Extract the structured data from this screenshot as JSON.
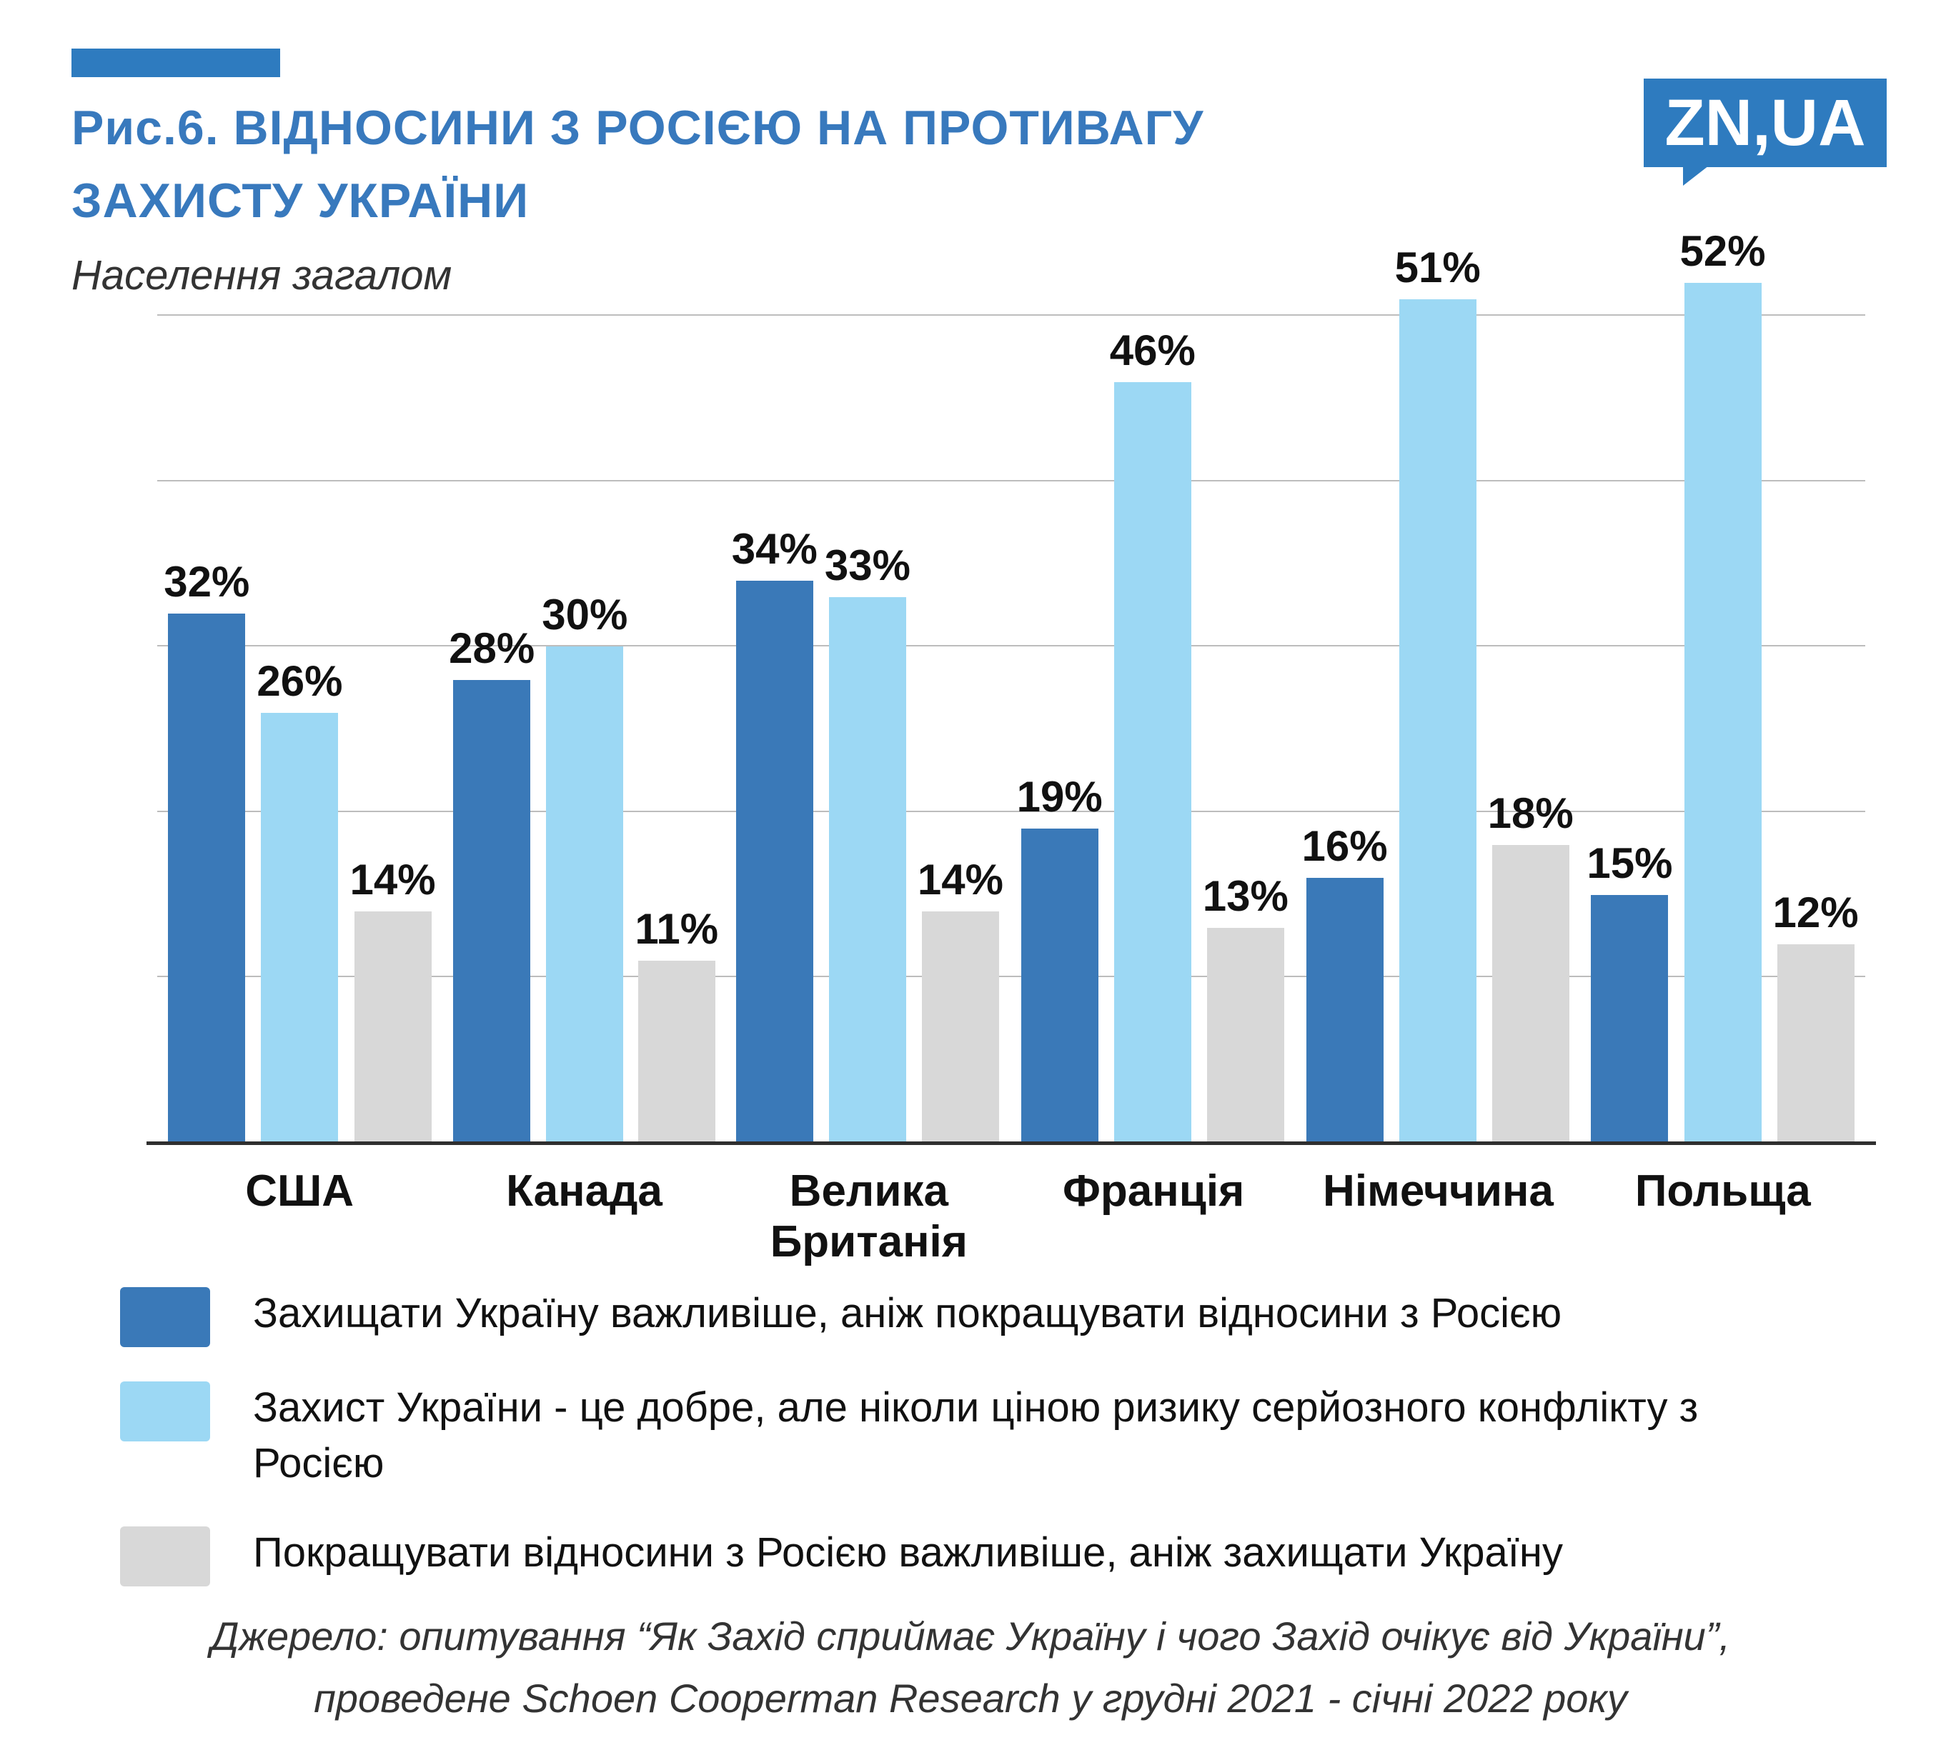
{
  "header": {
    "title_line1": "Рис.6. ВІДНОСИНИ З РОСІЄЮ НА ПРОТИВАГУ",
    "title_line2": "ЗАХИСТУ УКРАЇНИ",
    "subtitle": "Населення загалом",
    "logo_text": "ZN,UA"
  },
  "colors": {
    "brand": "#2e7bbf",
    "title": "#3879bd",
    "series_dark_blue": "#3a79b8",
    "series_light_blue": "#9cd8f4",
    "series_gray": "#d8d8d8"
  },
  "chart_data": {
    "type": "bar",
    "title": "Рис.6. Відносини з Росією на противагу захисту України",
    "subtitle": "Населення загалом",
    "categories": [
      "США",
      "Канада",
      "Велика Британія",
      "Франція",
      "Німеччина",
      "Польща"
    ],
    "series": [
      {
        "name": "Захищати Україну важливіше, аніж покращувати відносини з Росією",
        "color": "#3a79b8",
        "values": [
          32,
          28,
          34,
          19,
          16,
          15
        ]
      },
      {
        "name": "Захист України - це добре, але ніколи ціною ризику серйозного конфлікту з Росією",
        "color": "#9cd8f4",
        "values": [
          26,
          30,
          33,
          46,
          51,
          52
        ]
      },
      {
        "name": "Покращувати відносини з Росією важливіше, аніж захищати Україну",
        "color": "#d8d8d8",
        "values": [
          14,
          11,
          14,
          13,
          18,
          12
        ]
      }
    ],
    "value_suffix": "%",
    "ylim": [
      0,
      57
    ],
    "gridlines": [
      0,
      10,
      20,
      30,
      40,
      50
    ],
    "grid": true,
    "legend_position": "bottom"
  },
  "source": {
    "line1": "Джерело: опитування “Як Захід сприймає Україну і чого Захід очікує від України”,",
    "line2": "проведене Schoen Cooperman Research у грудні 2021 - січні 2022 року"
  }
}
